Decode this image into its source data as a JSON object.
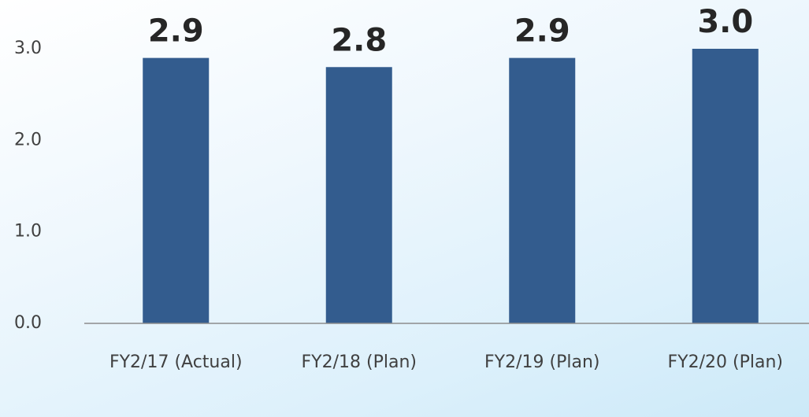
{
  "chart_data": {
    "type": "bar",
    "categories": [
      "FY2/17 (Actual)",
      "FY2/18 (Plan)",
      "FY2/19 (Plan)",
      "FY2/20 (Plan)"
    ],
    "values": [
      2.9,
      2.8,
      2.9,
      3.0
    ],
    "value_labels": [
      "2.9",
      "2.8",
      "2.9",
      "3.0"
    ],
    "color": "#335c8e",
    "ylim": [
      0,
      3
    ],
    "yticks": [
      {
        "value": 0,
        "label": "0.0"
      },
      {
        "value": 1,
        "label": "1.0"
      },
      {
        "value": 2,
        "label": "2.0"
      },
      {
        "value": 3,
        "label": "3.0"
      }
    ],
    "grid": false
  }
}
